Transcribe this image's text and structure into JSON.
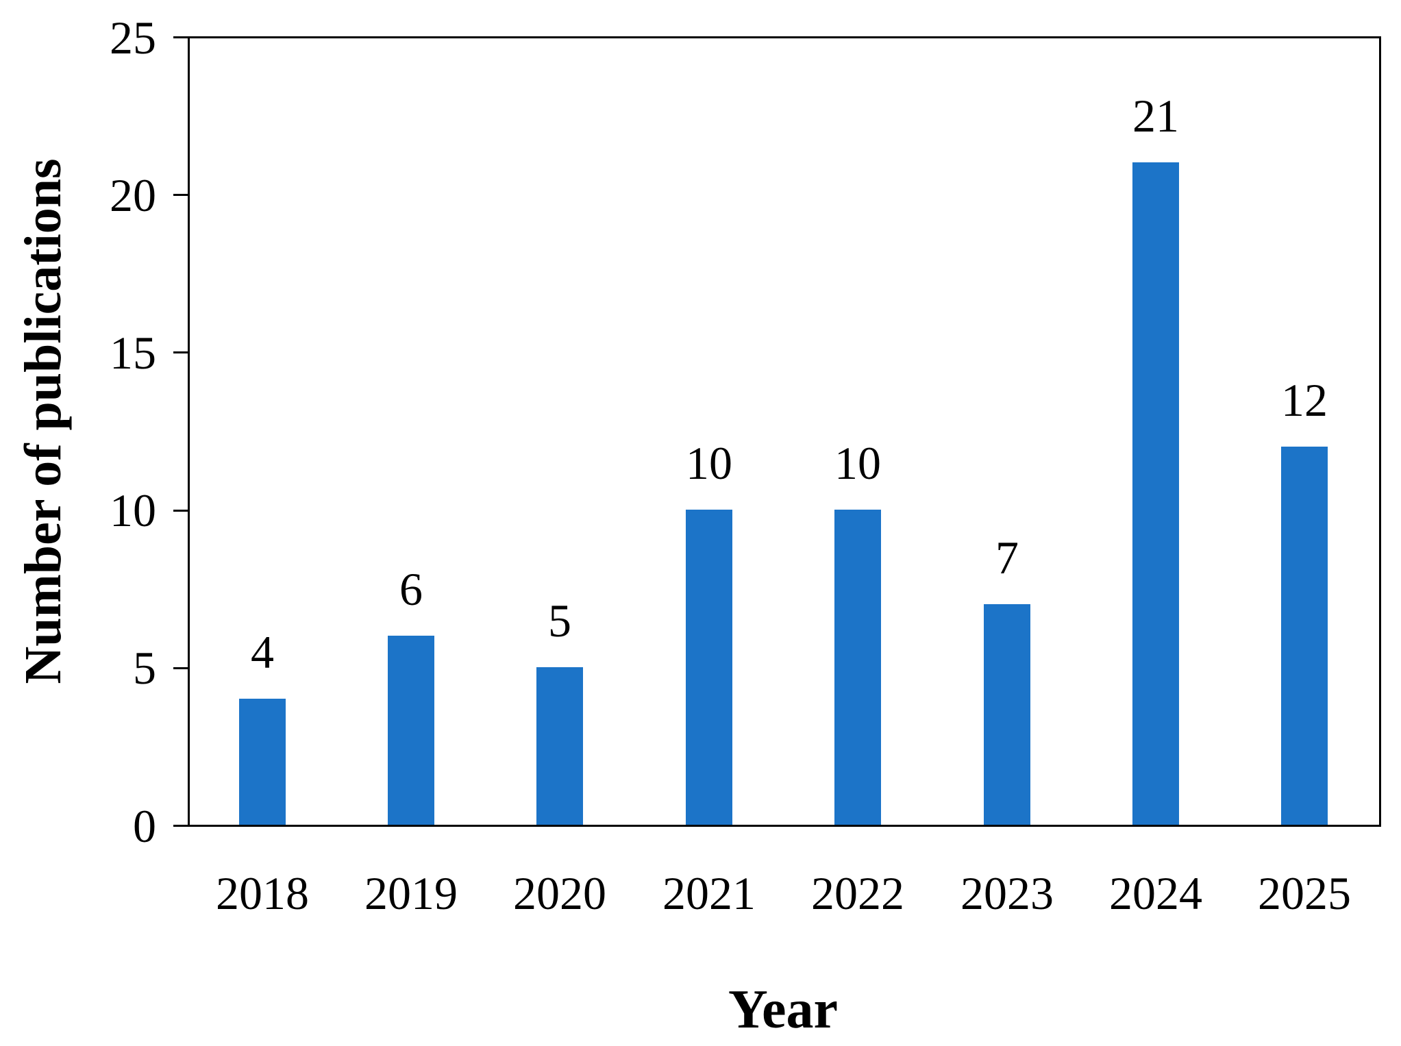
{
  "chart_data": {
    "type": "bar",
    "title": "",
    "xlabel": "Year",
    "ylabel": "Number of publications",
    "categories": [
      "2018",
      "2019",
      "2020",
      "2021",
      "2022",
      "2023",
      "2024",
      "2025"
    ],
    "values": [
      4,
      6,
      5,
      10,
      10,
      7,
      21,
      12
    ],
    "value_labels": [
      "4",
      "6",
      "5",
      "10",
      "10",
      "7",
      "21",
      "12"
    ],
    "ylim": [
      0,
      25
    ],
    "yticks": [
      0,
      5,
      10,
      15,
      20,
      25
    ],
    "ytick_labels": [
      "0",
      "5",
      "10",
      "15",
      "20",
      "25"
    ],
    "grid": false,
    "legend_position": "none",
    "bar_color": "#1C74C8",
    "axis_color": "#000000",
    "text_color": "#000000",
    "background_color": "#FFFFFF"
  }
}
